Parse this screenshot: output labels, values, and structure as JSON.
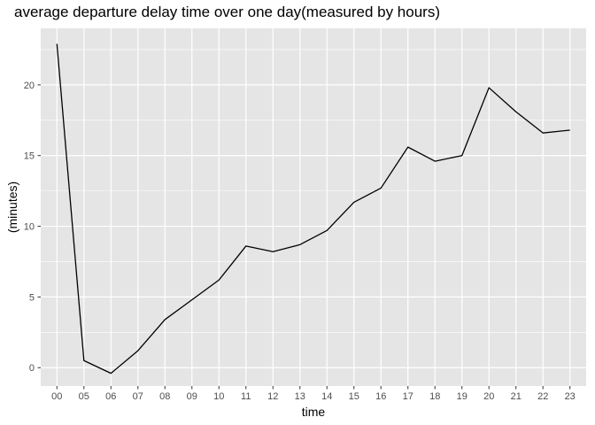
{
  "chart_data": {
    "type": "line",
    "title": "average departure delay time over one day(measured by hours)",
    "xlabel": "time",
    "ylabel": "(minutes)",
    "categories": [
      "00",
      "05",
      "06",
      "07",
      "08",
      "09",
      "10",
      "11",
      "12",
      "13",
      "14",
      "15",
      "16",
      "17",
      "18",
      "19",
      "20",
      "21",
      "22",
      "23"
    ],
    "series": [
      {
        "values": [
          22.9,
          0.5,
          -0.4,
          1.2,
          3.4,
          4.8,
          6.2,
          8.6,
          8.2,
          8.7,
          9.7,
          11.7,
          12.7,
          15.6,
          14.6,
          15.0,
          19.8,
          18.1,
          16.6,
          16.8
        ]
      }
    ],
    "ylim": [
      -1.3,
      24
    ],
    "yticks": [
      0,
      5,
      10,
      15,
      20
    ],
    "grid": true,
    "legend": "none",
    "colors": {
      "panel": "#e5e5e5",
      "grid": "#ffffff",
      "line": "#000000",
      "ticks": "#4d4d4d"
    }
  }
}
